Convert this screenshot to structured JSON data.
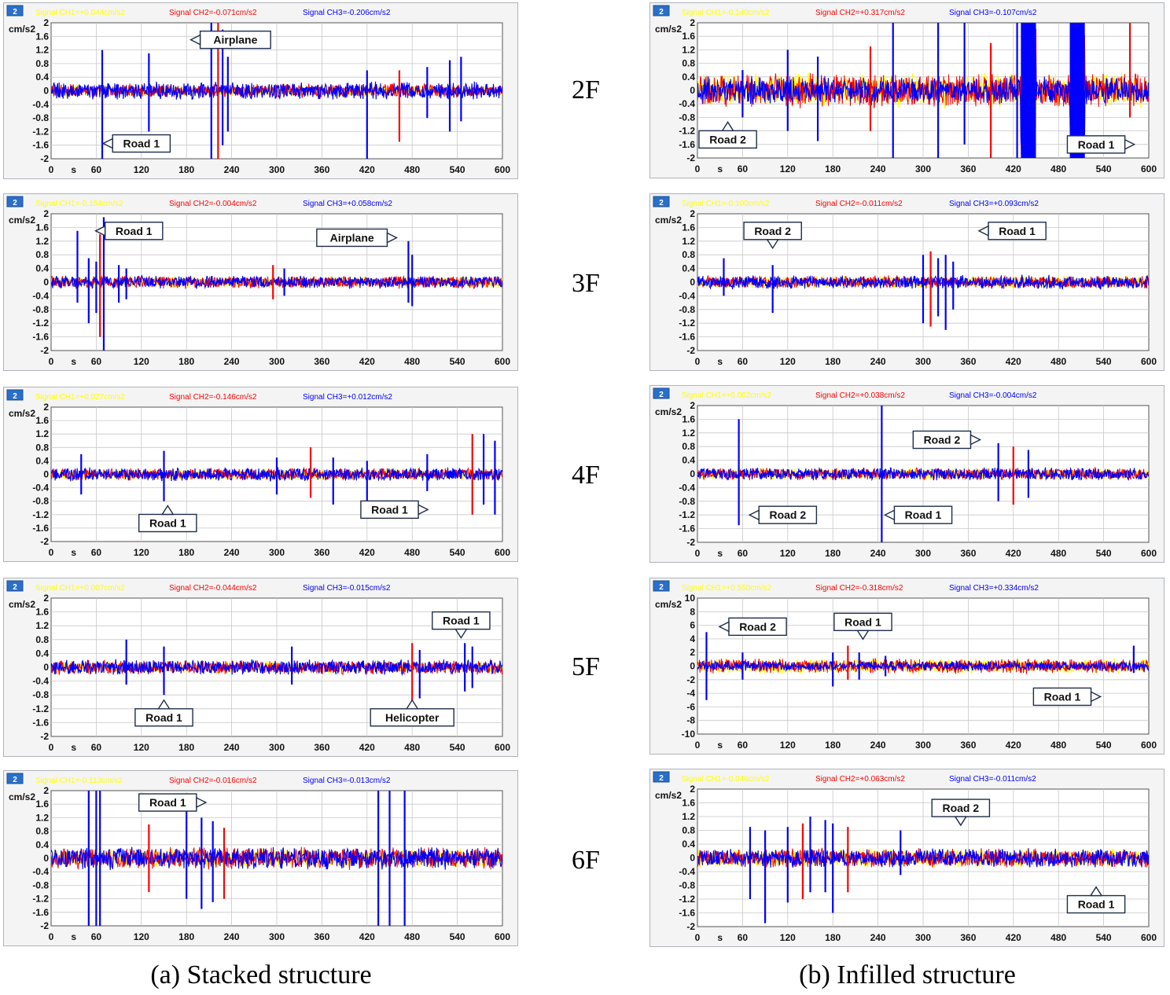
{
  "floors": [
    "2F",
    "3F",
    "4F",
    "5F",
    "6F"
  ],
  "captions": {
    "a": "(a) Stacked structure",
    "b": "(b) Infilled structure"
  },
  "colors": {
    "ch1": "#ffff00",
    "ch2": "#ff0000",
    "ch3": "#0000ff",
    "plot_bg": "#ffffff",
    "panel_bg": "#f4f4f4",
    "grid": "#c8c8c8"
  },
  "common": {
    "badge": "2",
    "unit": "cm/s2",
    "x_unit": "s",
    "xticks": [
      "0",
      "60",
      "120",
      "180",
      "240",
      "300",
      "360",
      "420",
      "480",
      "540",
      "600"
    ],
    "yticks_2": [
      "2",
      "1.6",
      "1.2",
      "0.8",
      "0.4",
      "0",
      "-0.4",
      "-0.8",
      "-1.2",
      "-1.6",
      "-2"
    ],
    "yticks_10": [
      "10",
      "8",
      "6",
      "4",
      "2",
      "0",
      "-2",
      "-4",
      "-6",
      "-8",
      "-10"
    ]
  },
  "chart_data": [
    {
      "id": "a2",
      "type": "line",
      "floor": "2F",
      "structure": "(a) Stacked structure",
      "xlim": [
        0,
        600
      ],
      "ylim": [
        -2,
        2
      ],
      "legend": [
        "Signal CH1=+0.044cm/s2",
        "Signal CH2=-0.071cm/s2",
        "Signal CH3=-0.206cm/s2"
      ],
      "noise": [
        0.18,
        0.22,
        0.28
      ],
      "spikes": [
        [
          68,
          1.2,
          -2.0
        ],
        [
          130,
          1.1,
          -1.2
        ],
        [
          213,
          2.0,
          -2.0
        ],
        [
          222,
          2.0,
          -2.0
        ],
        [
          228,
          1.8,
          -1.6
        ],
        [
          235,
          1.0,
          -1.2
        ],
        [
          420,
          0.6,
          -2.0
        ],
        [
          463,
          0.6,
          -1.5
        ],
        [
          500,
          0.7,
          -0.8
        ],
        [
          530,
          0.9,
          -1.2
        ],
        [
          545,
          1.0,
          -0.9
        ]
      ],
      "annotations": [
        {
          "text": "Airplane",
          "x": 245,
          "y": 1.5,
          "arrow": "left"
        },
        {
          "text": "Road 1",
          "x": 120,
          "y": -1.55,
          "arrow": "left"
        }
      ]
    },
    {
      "id": "b2",
      "type": "line",
      "floor": "2F",
      "structure": "(b) Infilled structure",
      "xlim": [
        0,
        600
      ],
      "ylim": [
        -2,
        2
      ],
      "legend": [
        "Signal CH1=-0.140cm/s2",
        "Signal CH2=+0.317cm/s2",
        "Signal CH3=-0.107cm/s2"
      ],
      "noise": [
        0.55,
        0.55,
        0.45
      ],
      "spikes": [
        [
          60,
          0.6,
          -0.8
        ],
        [
          120,
          1.2,
          -1.2
        ],
        [
          160,
          1.0,
          -1.5
        ],
        [
          230,
          1.3,
          -1.2
        ],
        [
          260,
          2.0,
          -2.0
        ],
        [
          320,
          2.0,
          -2.0
        ],
        [
          355,
          2.0,
          -1.6
        ],
        [
          390,
          1.4,
          -2.0
        ],
        [
          425,
          2.0,
          -2.0
        ],
        [
          445,
          2.0,
          -2.0
        ],
        [
          510,
          2.0,
          -2.0
        ],
        [
          575,
          2.0,
          -0.8
        ]
      ],
      "bursts": [
        [
          430,
          450
        ],
        [
          495,
          515
        ]
      ],
      "annotations": [
        {
          "text": "Road 2",
          "x": 25,
          "y": -1.45,
          "arrow": "up"
        },
        {
          "text": "Road 1",
          "x": 530,
          "y": -1.6,
          "arrow": "right"
        }
      ]
    },
    {
      "id": "a3",
      "type": "line",
      "floor": "3F",
      "structure": "(a) Stacked structure",
      "xlim": [
        0,
        600
      ],
      "ylim": [
        -2,
        2
      ],
      "legend": [
        "Signal CH1=-0.154cm/s2",
        "Signal CH2=-0.004cm/s2",
        "Signal CH3=+0.058cm/s2"
      ],
      "noise": [
        0.18,
        0.2,
        0.2
      ],
      "spikes": [
        [
          35,
          1.5,
          -0.6
        ],
        [
          50,
          0.7,
          -1.2
        ],
        [
          60,
          0.6,
          -0.9
        ],
        [
          65,
          1.4,
          -1.6
        ],
        [
          70,
          1.9,
          -2.0
        ],
        [
          90,
          0.5,
          -0.6
        ],
        [
          100,
          0.4,
          -0.5
        ],
        [
          295,
          0.5,
          -0.5
        ],
        [
          310,
          0.4,
          -0.4
        ],
        [
          475,
          1.2,
          -0.6
        ],
        [
          480,
          0.8,
          -0.7
        ]
      ],
      "annotations": [
        {
          "text": "Road 1",
          "x": 110,
          "y": 1.5,
          "arrow": "left"
        },
        {
          "text": "Airplane",
          "x": 400,
          "y": 1.3,
          "arrow": "right"
        }
      ]
    },
    {
      "id": "b3",
      "type": "line",
      "floor": "3F",
      "structure": "(b) Infilled structure",
      "xlim": [
        0,
        600
      ],
      "ylim": [
        -2,
        2
      ],
      "legend": [
        "Signal CH1=-0.100cm/s2",
        "Signal CH2=-0.011cm/s2",
        "Signal CH3=+0.093cm/s2"
      ],
      "noise": [
        0.2,
        0.2,
        0.22
      ],
      "spikes": [
        [
          35,
          0.7,
          -0.4
        ],
        [
          100,
          0.5,
          -0.9
        ],
        [
          300,
          0.8,
          -1.2
        ],
        [
          310,
          0.9,
          -1.3
        ],
        [
          320,
          0.7,
          -1.0
        ],
        [
          330,
          0.8,
          -1.4
        ],
        [
          340,
          0.6,
          -0.8
        ]
      ],
      "annotations": [
        {
          "text": "Road 2",
          "x": 100,
          "y": 1.5,
          "arrow": "down"
        },
        {
          "text": "Road 1",
          "x": 425,
          "y": 1.5,
          "arrow": "left"
        }
      ]
    },
    {
      "id": "a4",
      "type": "line",
      "floor": "4F",
      "structure": "(a) Stacked structure",
      "xlim": [
        0,
        600
      ],
      "ylim": [
        -2,
        2
      ],
      "legend": [
        "Signal CH1=+0.027cm/s2",
        "Signal CH2=-0.146cm/s2",
        "Signal CH3=+0.012cm/s2"
      ],
      "noise": [
        0.18,
        0.2,
        0.22
      ],
      "spikes": [
        [
          40,
          0.6,
          -0.6
        ],
        [
          150,
          0.7,
          -0.8
        ],
        [
          300,
          0.5,
          -0.6
        ],
        [
          345,
          0.8,
          -0.7
        ],
        [
          375,
          0.5,
          -0.9
        ],
        [
          420,
          0.4,
          -1.0
        ],
        [
          500,
          0.6,
          -0.5
        ],
        [
          560,
          1.2,
          -1.2
        ],
        [
          575,
          1.2,
          -0.9
        ],
        [
          590,
          1.0,
          -1.2
        ]
      ],
      "annotations": [
        {
          "text": "Road 1",
          "x": 155,
          "y": -1.45,
          "arrow": "up"
        },
        {
          "text": "Road 1",
          "x": 450,
          "y": -1.05,
          "arrow": "right"
        }
      ]
    },
    {
      "id": "b4",
      "type": "line",
      "floor": "4F",
      "structure": "(b) Infilled structure",
      "xlim": [
        0,
        600
      ],
      "ylim": [
        -2,
        2
      ],
      "legend": [
        "Signal CH1=+0.062cm/s2",
        "Signal CH2=+0.038cm/s2",
        "Signal CH3=-0.004cm/s2"
      ],
      "noise": [
        0.18,
        0.2,
        0.2
      ],
      "spikes": [
        [
          55,
          1.6,
          -1.5
        ],
        [
          245,
          2.0,
          -2.0
        ],
        [
          400,
          0.9,
          -0.8
        ],
        [
          420,
          0.8,
          -0.9
        ],
        [
          440,
          0.7,
          -0.7
        ]
      ],
      "annotations": [
        {
          "text": "Road 2",
          "x": 325,
          "y": 1.0,
          "arrow": "right"
        },
        {
          "text": "Road 2",
          "x": 120,
          "y": -1.2,
          "arrow": "left"
        },
        {
          "text": "Road 1",
          "x": 300,
          "y": -1.2,
          "arrow": "left"
        }
      ]
    },
    {
      "id": "a5",
      "type": "line",
      "floor": "5F",
      "structure": "(a) Stacked structure",
      "xlim": [
        0,
        600
      ],
      "ylim": [
        -2,
        2
      ],
      "legend": [
        "Signal CH1=+0.007cm/s2",
        "Signal CH2=-0.044cm/s2",
        "Signal CH3=-0.015cm/s2"
      ],
      "noise": [
        0.18,
        0.22,
        0.24
      ],
      "spikes": [
        [
          100,
          0.8,
          -0.5
        ],
        [
          150,
          0.6,
          -0.8
        ],
        [
          320,
          0.6,
          -0.5
        ],
        [
          480,
          0.7,
          -1.0
        ],
        [
          490,
          0.5,
          -0.9
        ],
        [
          550,
          0.7,
          -0.7
        ],
        [
          560,
          0.6,
          -0.6
        ]
      ],
      "annotations": [
        {
          "text": "Road 1",
          "x": 545,
          "y": 1.35,
          "arrow": "down"
        },
        {
          "text": "Road 1",
          "x": 150,
          "y": -1.45,
          "arrow": "up"
        },
        {
          "text": "Helicopter",
          "x": 480,
          "y": -1.45,
          "arrow": "up"
        }
      ]
    },
    {
      "id": "b5",
      "type": "line",
      "floor": "5F",
      "structure": "(b) Infilled structure",
      "xlim": [
        0,
        600
      ],
      "ylim": [
        -10,
        10
      ],
      "legend": [
        "Signal CH1=+0.550cm/s2",
        "Signal CH2=-0.318cm/s2",
        "Signal CH3=+0.334cm/s2"
      ],
      "noise": [
        1.2,
        1.2,
        0.8
      ],
      "spikes": [
        [
          12,
          5,
          -5
        ],
        [
          60,
          2,
          -2
        ],
        [
          180,
          2,
          -3
        ],
        [
          200,
          3,
          -2
        ],
        [
          215,
          2,
          -2
        ],
        [
          250,
          1.5,
          -1.5
        ],
        [
          580,
          3,
          -1
        ]
      ],
      "annotations": [
        {
          "text": "Road 2",
          "x": 80,
          "y": 5.8,
          "arrow": "left"
        },
        {
          "text": "Road 1",
          "x": 220,
          "y": 6.5,
          "arrow": "down"
        },
        {
          "text": "Road 1",
          "x": 485,
          "y": -4.5,
          "arrow": "right"
        }
      ]
    },
    {
      "id": "a6",
      "type": "line",
      "floor": "6F",
      "structure": "(a) Stacked structure",
      "xlim": [
        0,
        600
      ],
      "ylim": [
        -2,
        2
      ],
      "legend": [
        "Signal CH1=-0.113cm/s2",
        "Signal CH2=-0.016cm/s2",
        "Signal CH3=-0.013cm/s2"
      ],
      "noise": [
        0.3,
        0.35,
        0.35
      ],
      "spikes": [
        [
          50,
          2.0,
          -2.0
        ],
        [
          60,
          2.0,
          -2.0
        ],
        [
          65,
          2.0,
          -2.0
        ],
        [
          130,
          1.0,
          -1.0
        ],
        [
          180,
          1.4,
          -1.2
        ],
        [
          200,
          1.2,
          -1.5
        ],
        [
          215,
          1.1,
          -1.3
        ],
        [
          230,
          0.9,
          -1.2
        ],
        [
          435,
          2.0,
          -2.0
        ],
        [
          450,
          2.0,
          -2.0
        ],
        [
          470,
          2.0,
          -2.0
        ]
      ],
      "annotations": [
        {
          "text": "Road 1",
          "x": 155,
          "y": 1.65,
          "arrow": "right"
        }
      ]
    },
    {
      "id": "b6",
      "type": "line",
      "floor": "6F",
      "structure": "(b) Infilled structure",
      "xlim": [
        0,
        600
      ],
      "ylim": [
        -2,
        2
      ],
      "legend": [
        "Signal CH1=-0.046cm/s2",
        "Signal CH2=+0.063cm/s2",
        "Signal CH3=-0.011cm/s2"
      ],
      "noise": [
        0.3,
        0.3,
        0.3
      ],
      "spikes": [
        [
          70,
          0.9,
          -1.2
        ],
        [
          90,
          0.8,
          -1.9
        ],
        [
          120,
          0.9,
          -1.3
        ],
        [
          140,
          1.0,
          -1.2
        ],
        [
          150,
          1.2,
          -1.0
        ],
        [
          170,
          1.1,
          -1.0
        ],
        [
          180,
          1.0,
          -1.6
        ],
        [
          200,
          0.9,
          -1.0
        ],
        [
          270,
          0.8,
          -0.5
        ]
      ],
      "annotations": [
        {
          "text": "Road 2",
          "x": 350,
          "y": 1.45,
          "arrow": "down"
        },
        {
          "text": "Road 1",
          "x": 530,
          "y": -1.35,
          "arrow": "up"
        }
      ]
    }
  ]
}
